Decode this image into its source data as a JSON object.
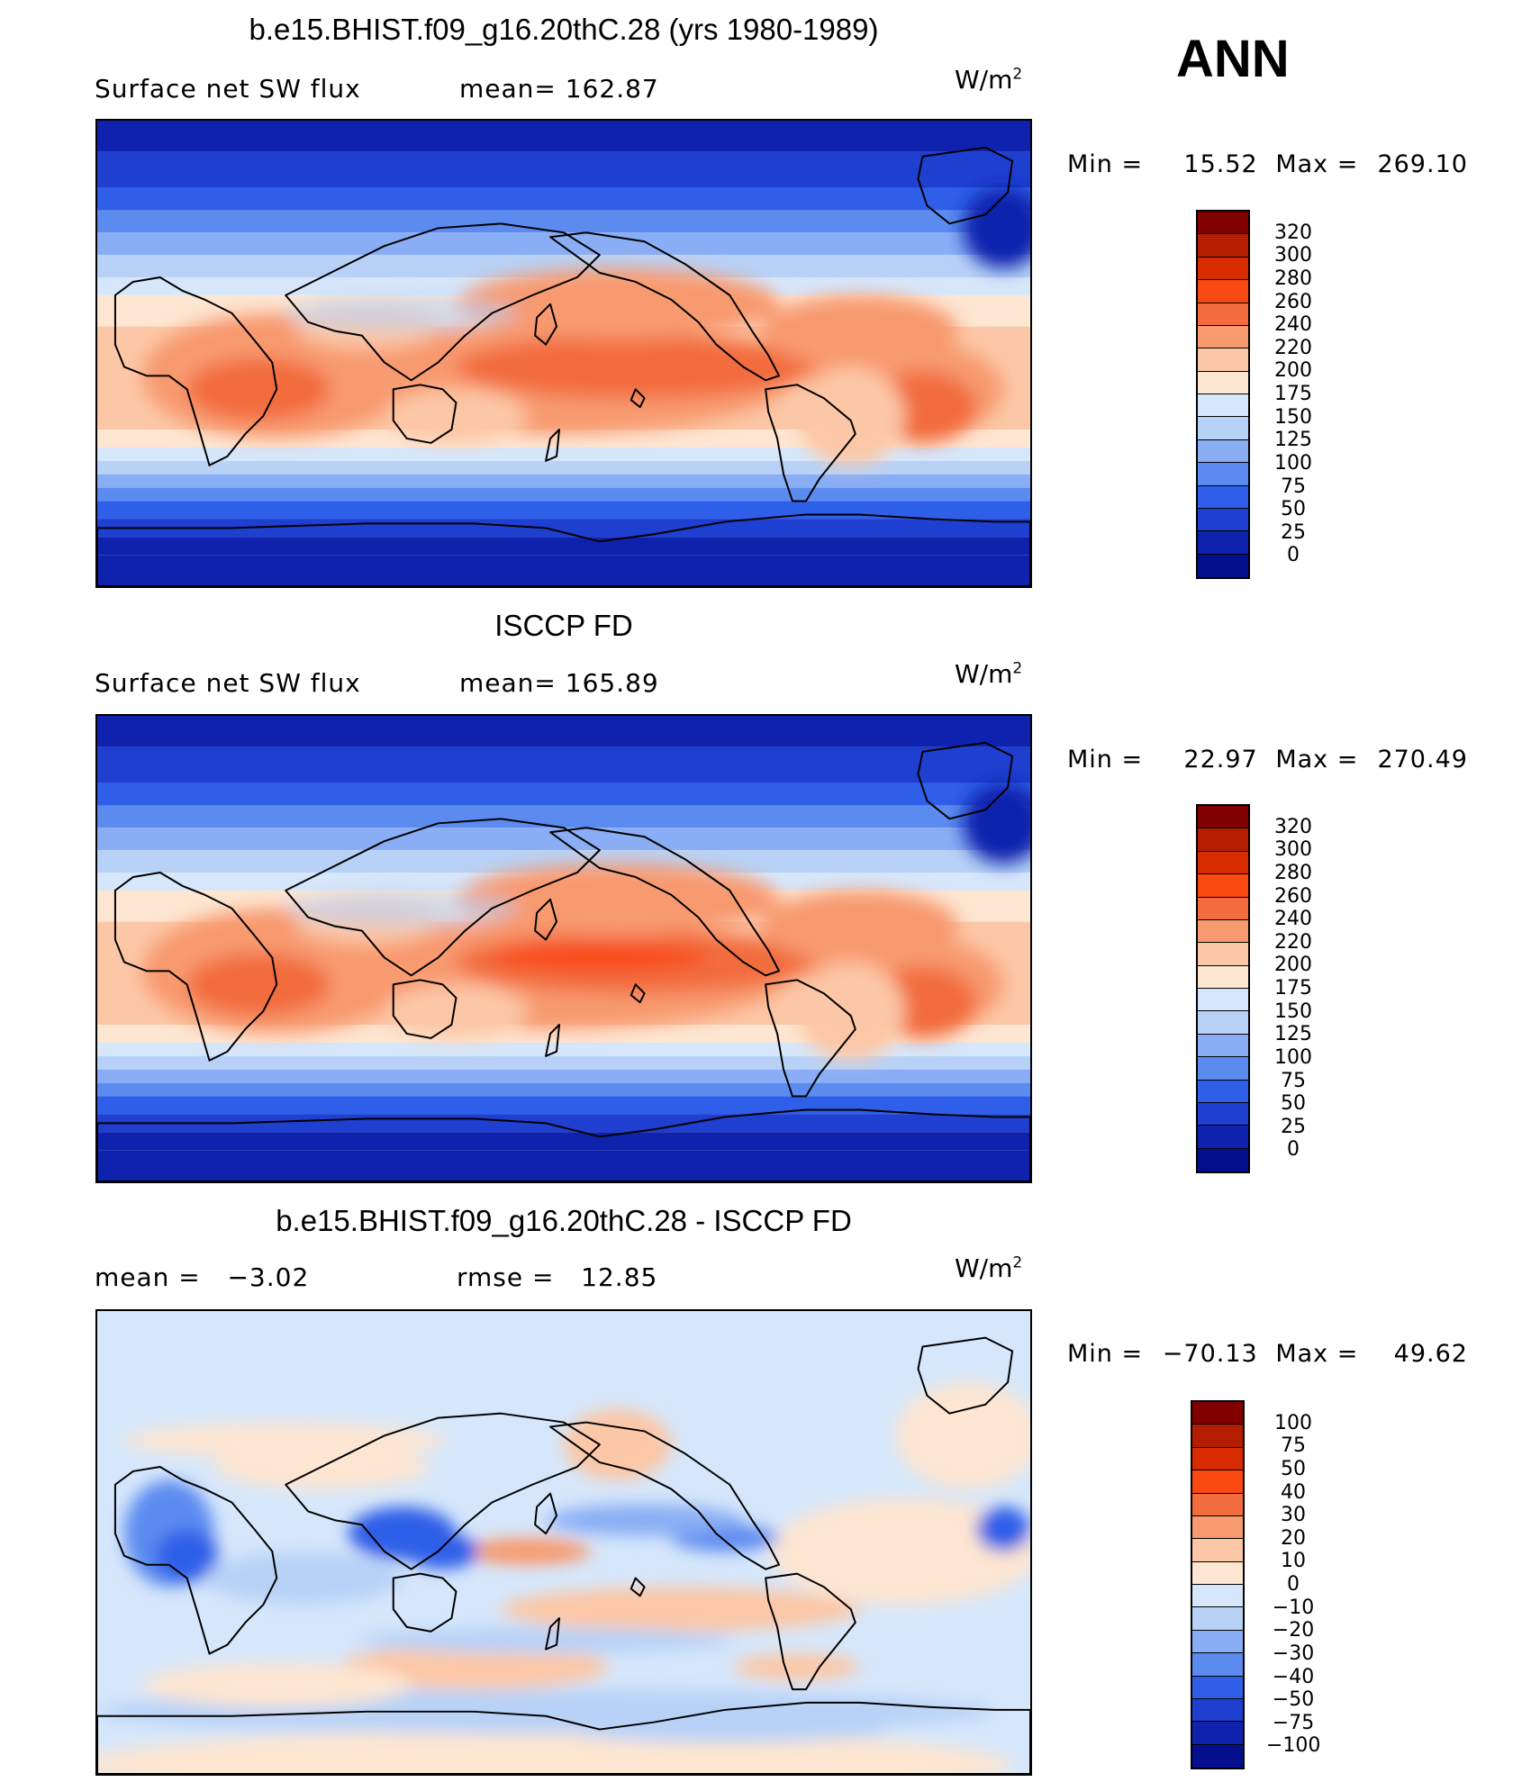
{
  "season": "ANN",
  "panels": [
    {
      "title": "b.e15.BHIST.f09_g16.20thC.28 (yrs 1980-1989)",
      "left_label": "Surface net SW flux",
      "right_label": "mean= 162.87",
      "units": "W/m",
      "units_exp": "2",
      "min_label": "Min =",
      "min_value": "15.52",
      "max_label": "Max =",
      "max_value": "269.10",
      "palette": "abs",
      "colorbar": {
        "labels": [
          "320",
          "300",
          "280",
          "260",
          "240",
          "220",
          "200",
          "175",
          "150",
          "125",
          "100",
          "75",
          "50",
          "25",
          "0"
        ],
        "colors": [
          "#800000",
          "#b41d00",
          "#d92b00",
          "#fa4a12",
          "#f26c3d",
          "#f89a70",
          "#fcc7a6",
          "#fde6d2",
          "#d6e7fb",
          "#b8d2f7",
          "#8aaef5",
          "#5c8bf0",
          "#2f5fe8",
          "#1e3fcf",
          "#0f22ad",
          "#030f8c"
        ]
      }
    },
    {
      "title": "ISCCP FD",
      "left_label": "Surface net SW flux",
      "right_label": "mean= 165.89",
      "units": "W/m",
      "units_exp": "2",
      "min_label": "Min =",
      "min_value": "22.97",
      "max_label": "Max =",
      "max_value": "270.49",
      "palette": "abs",
      "colorbar": {
        "labels": [
          "320",
          "300",
          "280",
          "260",
          "240",
          "220",
          "200",
          "175",
          "150",
          "125",
          "100",
          "75",
          "50",
          "25",
          "0"
        ],
        "colors": [
          "#800000",
          "#b41d00",
          "#d92b00",
          "#fa4a12",
          "#f26c3d",
          "#f89a70",
          "#fcc7a6",
          "#fde6d2",
          "#d6e7fb",
          "#b8d2f7",
          "#8aaef5",
          "#5c8bf0",
          "#2f5fe8",
          "#1e3fcf",
          "#0f22ad",
          "#030f8c"
        ]
      }
    },
    {
      "title": "b.e15.BHIST.f09_g16.20thC.28 - ISCCP FD",
      "left_label": "mean =   −3.02",
      "right_label": "rmse =   12.85",
      "units": "W/m",
      "units_exp": "2",
      "min_label": "Min =",
      "min_value": "−70.13",
      "max_label": "Max =",
      "max_value": "49.62",
      "palette": "diff",
      "colorbar": {
        "labels": [
          "100",
          "75",
          "50",
          "40",
          "30",
          "20",
          "10",
          "0",
          "−10",
          "−20",
          "−30",
          "−40",
          "−50",
          "−75",
          "−100"
        ],
        "colors": [
          "#800000",
          "#b41d00",
          "#d92b00",
          "#fa4a12",
          "#f26c3d",
          "#f89a70",
          "#fcc7a6",
          "#fde6d2",
          "#d6e7fb",
          "#b8d2f7",
          "#8aaef5",
          "#5c8bf0",
          "#2f5fe8",
          "#1e3fcf",
          "#0f22ad",
          "#030f8c"
        ]
      }
    }
  ]
}
